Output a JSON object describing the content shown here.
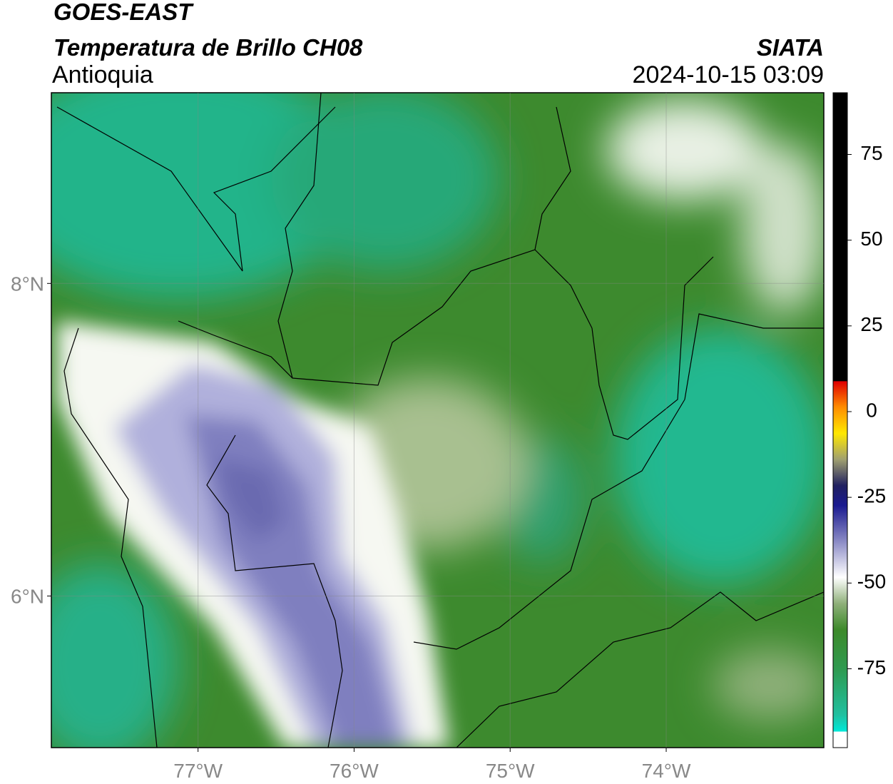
{
  "header": {
    "title": "GOES-EAST",
    "subtitle": "Temperatura de Brillo CH08",
    "region": "Antioquia",
    "source": "SIATA",
    "datetime": "2024-10-15 03:09"
  },
  "map": {
    "xlim": [
      -77.94,
      -72.99
    ],
    "ylim": [
      5.03,
      9.22
    ],
    "xticks": [
      {
        "value": -77,
        "label": "77°W"
      },
      {
        "value": -76,
        "label": "76°W"
      },
      {
        "value": -75,
        "label": "75°W"
      },
      {
        "value": -74,
        "label": "74°W"
      }
    ],
    "yticks": [
      {
        "value": 8,
        "label": "8°N"
      },
      {
        "value": 6,
        "label": "6°N"
      }
    ]
  },
  "colorbar": {
    "lim": [
      -98,
      93
    ],
    "ticks": [
      75,
      50,
      25,
      0,
      -25,
      -50,
      -75
    ]
  }
}
